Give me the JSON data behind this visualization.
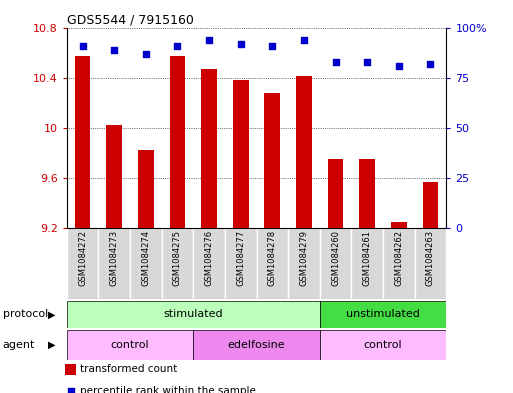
{
  "title": "GDS5544 / 7915160",
  "samples": [
    "GSM1084272",
    "GSM1084273",
    "GSM1084274",
    "GSM1084275",
    "GSM1084276",
    "GSM1084277",
    "GSM1084278",
    "GSM1084279",
    "GSM1084260",
    "GSM1084261",
    "GSM1084262",
    "GSM1084263"
  ],
  "transformed_count": [
    10.57,
    10.02,
    9.82,
    10.57,
    10.47,
    10.38,
    10.28,
    10.41,
    9.75,
    9.75,
    9.25,
    9.57
  ],
  "percentile_rank": [
    91,
    89,
    87,
    91,
    94,
    92,
    91,
    94,
    83,
    83,
    81,
    82
  ],
  "ylim_left": [
    9.2,
    10.8
  ],
  "ylim_right": [
    0,
    100
  ],
  "yticks_left": [
    9.2,
    9.6,
    10.0,
    10.4,
    10.8
  ],
  "ytick_labels_left": [
    "9.2",
    "9.6",
    "10",
    "10.4",
    "10.8"
  ],
  "yticks_right": [
    0,
    25,
    50,
    75,
    100
  ],
  "ytick_labels_right": [
    "0",
    "25",
    "50",
    "75",
    "100%"
  ],
  "bar_color": "#cc0000",
  "dot_color": "#0000cc",
  "bar_baseline": 9.2,
  "protocol_groups": [
    {
      "label": "stimulated",
      "start": 0,
      "end": 8,
      "color": "#bbffbb"
    },
    {
      "label": "unstimulated",
      "start": 8,
      "end": 12,
      "color": "#44dd44"
    }
  ],
  "agent_groups": [
    {
      "label": "control",
      "start": 0,
      "end": 4,
      "color": "#ffbbff"
    },
    {
      "label": "edelfosine",
      "start": 4,
      "end": 8,
      "color": "#ee88ee"
    },
    {
      "label": "control",
      "start": 8,
      "end": 12,
      "color": "#ffbbff"
    }
  ],
  "legend_bar_label": "transformed count",
  "legend_dot_label": "percentile rank within the sample",
  "protocol_label": "protocol",
  "agent_label": "agent",
  "grid_color": "#000000",
  "cell_bg": "#d8d8d8"
}
